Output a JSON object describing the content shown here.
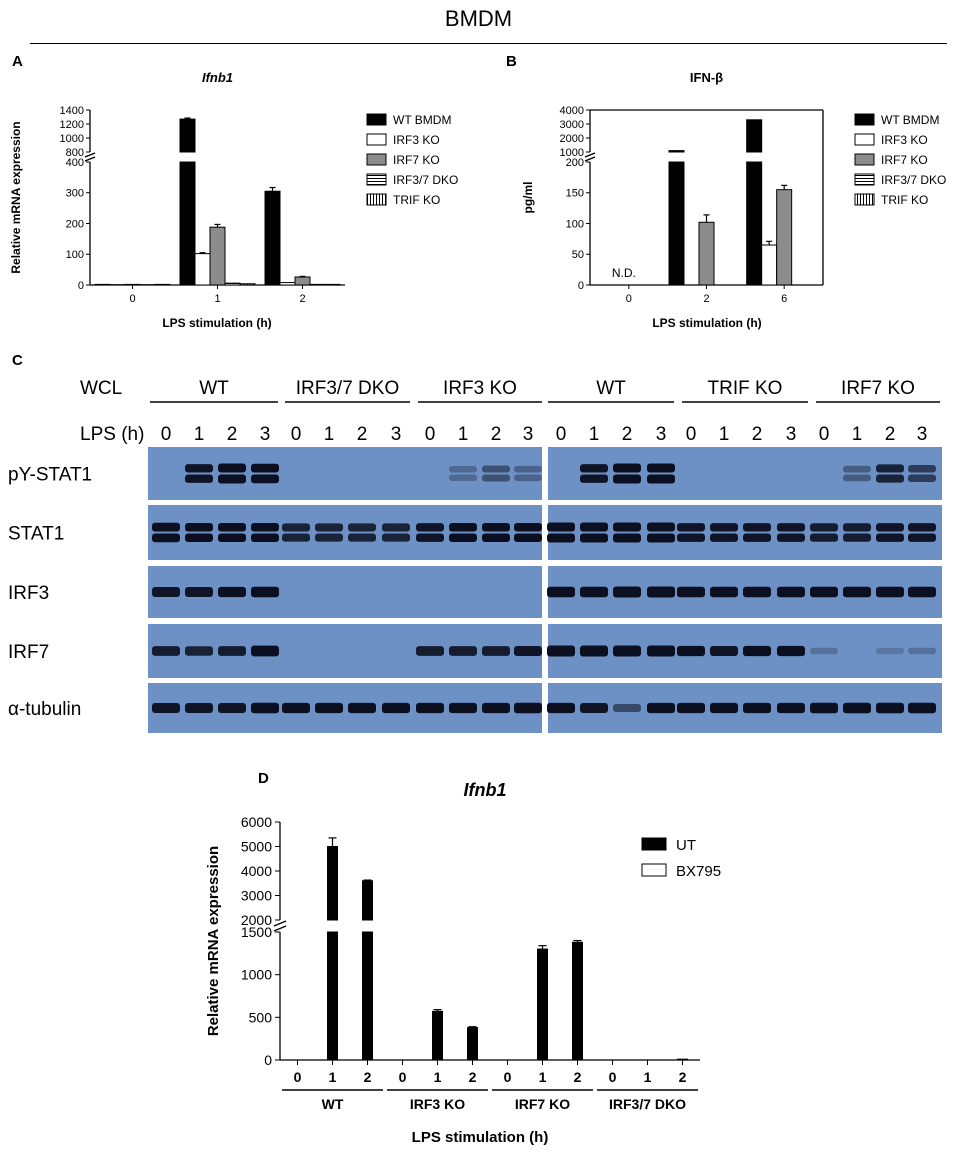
{
  "header": {
    "title": "BMDM"
  },
  "panels": {
    "a": "A",
    "b": "B",
    "c": "C",
    "d": "D"
  },
  "chart_data": [
    {
      "id": "A",
      "type": "bar",
      "title": "Ifnb1",
      "xlabel": "LPS stimulation (h)",
      "ylabel": "Relative mRNA expression",
      "categories": [
        "0",
        "1",
        "2"
      ],
      "axis_break": {
        "lower": [
          0,
          400
        ],
        "upper": [
          800,
          1400
        ]
      },
      "lower_ticks": [
        "0",
        "100",
        "200",
        "300",
        "400"
      ],
      "upper_ticks": [
        "800",
        "1000",
        "1200",
        "1400"
      ],
      "series": [
        {
          "name": "WT BMDM",
          "fill": "#000000",
          "pattern": "solid",
          "values": [
            2,
            1270,
            305
          ],
          "errors": [
            0,
            15,
            12
          ]
        },
        {
          "name": "IRF3 KO",
          "fill": "#ffffff",
          "pattern": "solid",
          "values": [
            1,
            102,
            8
          ],
          "errors": [
            0,
            3,
            0
          ]
        },
        {
          "name": "IRF7 KO",
          "fill": "#8c8c8c",
          "pattern": "solid",
          "values": [
            2,
            188,
            26
          ],
          "errors": [
            0,
            9,
            2
          ]
        },
        {
          "name": "IRF3/7 DKO",
          "fill": "#ffffff",
          "pattern": "hstripe",
          "values": [
            1,
            6,
            2
          ],
          "errors": [
            0,
            0,
            0
          ]
        },
        {
          "name": "TRIF KO",
          "fill": "#ffffff",
          "pattern": "vstripe",
          "values": [
            2,
            4,
            2
          ],
          "errors": [
            0,
            0,
            0
          ]
        }
      ]
    },
    {
      "id": "B",
      "type": "bar",
      "title": "IFN-β",
      "xlabel": "LPS stimulation (h)",
      "ylabel": "pg/ml",
      "categories": [
        "0",
        "2",
        "6"
      ],
      "annotation": "N.D.",
      "axis_break": {
        "lower": [
          0,
          200
        ],
        "upper": [
          1000,
          4000
        ]
      },
      "lower_ticks": [
        "0",
        "50",
        "100",
        "150",
        "200"
      ],
      "upper_ticks": [
        "1000",
        "2000",
        "3000",
        "4000"
      ],
      "series": [
        {
          "name": "WT BMDM",
          "fill": "#000000",
          "pattern": "solid",
          "values": [
            0,
            1100,
            3300
          ],
          "errors": [
            0,
            0,
            0
          ]
        },
        {
          "name": "IRF3 KO",
          "fill": "#ffffff",
          "pattern": "solid",
          "values": [
            0,
            0,
            65
          ],
          "errors": [
            0,
            0,
            6
          ]
        },
        {
          "name": "IRF7 KO",
          "fill": "#8c8c8c",
          "pattern": "solid",
          "values": [
            0,
            102,
            155
          ],
          "errors": [
            0,
            12,
            7
          ]
        },
        {
          "name": "IRF3/7 DKO",
          "fill": "#ffffff",
          "pattern": "hstripe",
          "values": [
            0,
            0,
            0
          ],
          "errors": [
            0,
            0,
            0
          ]
        },
        {
          "name": "TRIF KO",
          "fill": "#ffffff",
          "pattern": "vstripe",
          "values": [
            0,
            0,
            0
          ],
          "errors": [
            0,
            0,
            0
          ]
        }
      ]
    },
    {
      "id": "D",
      "type": "bar",
      "title": "Ifnb1",
      "xlabel": "LPS stimulation (h)",
      "ylabel": "Relative mRNA expression",
      "categories": [
        "0",
        "1",
        "2",
        "0",
        "1",
        "2",
        "0",
        "1",
        "2",
        "0",
        "1",
        "2"
      ],
      "groups": [
        "WT",
        "IRF3 KO",
        "IRF7 KO",
        "IRF3/7 DKO"
      ],
      "axis_break": {
        "lower": [
          0,
          1500
        ],
        "upper": [
          2000,
          6000
        ]
      },
      "lower_ticks": [
        "0",
        "500",
        "1000",
        "1500"
      ],
      "upper_ticks": [
        "2000",
        "3000",
        "4000",
        "5000",
        "6000"
      ],
      "series": [
        {
          "name": "UT",
          "fill": "#000000",
          "pattern": "solid",
          "values": [
            0,
            5000,
            3600,
            0,
            570,
            380,
            0,
            1300,
            1380,
            0,
            0,
            10
          ],
          "errors": [
            0,
            350,
            30,
            0,
            20,
            10,
            0,
            40,
            20,
            0,
            0,
            0
          ]
        },
        {
          "name": "BX795",
          "fill": "#ffffff",
          "pattern": "solid",
          "values": [
            0,
            0,
            0,
            0,
            0,
            0,
            0,
            0,
            0,
            0,
            0,
            0
          ],
          "errors": [
            0,
            0,
            0,
            0,
            0,
            0,
            0,
            0,
            0,
            0,
            0,
            0
          ]
        }
      ]
    }
  ],
  "blot": {
    "wcl_label": "WCL",
    "lps_label": "LPS (h)",
    "groups": [
      "WT",
      "IRF3/7 DKO",
      "IRF3 KO",
      "WT",
      "TRIF KO",
      "IRF7 KO"
    ],
    "timepoints": [
      "0",
      "1",
      "2",
      "3"
    ],
    "rows": [
      {
        "label": "pY-STAT1",
        "left": [
          0,
          0.8,
          1,
          0.9,
          0,
          0,
          0,
          0,
          0,
          0.15,
          0.35,
          0.2
        ],
        "right": [
          0,
          0.8,
          1,
          1,
          0,
          0,
          0,
          0,
          0,
          0.25,
          0.7,
          0.5
        ]
      },
      {
        "label": "STAT1",
        "left": [
          0.9,
          0.85,
          0.85,
          0.85,
          0.7,
          0.7,
          0.7,
          0.7,
          0.8,
          0.85,
          0.85,
          0.85
        ],
        "right": [
          1,
          1,
          1,
          1,
          0.8,
          0.8,
          0.8,
          0.8,
          0.75,
          0.75,
          0.8,
          0.8
        ]
      },
      {
        "label": "IRF3",
        "left": [
          0.8,
          0.8,
          0.85,
          0.9,
          0,
          0,
          0,
          0,
          0,
          0,
          0,
          0
        ],
        "right": [
          0.9,
          0.9,
          1,
          1,
          0.9,
          0.9,
          0.9,
          0.9,
          0.9,
          0.9,
          0.9,
          0.9
        ]
      },
      {
        "label": "IRF7",
        "left": [
          0.75,
          0.7,
          0.75,
          0.95,
          0,
          0,
          0,
          0,
          0.75,
          0.75,
          0.75,
          0.8
        ],
        "right": [
          1,
          1,
          1,
          1,
          0.85,
          0.8,
          0.85,
          0.85,
          0.1,
          0,
          0.05,
          0.1
        ]
      },
      {
        "label": "α-tubulin",
        "left": [
          0.8,
          0.8,
          0.8,
          0.9,
          0.85,
          0.85,
          0.85,
          0.85,
          0.85,
          0.85,
          0.85,
          0.9
        ],
        "right": [
          0.85,
          0.8,
          0.4,
          0.85,
          0.85,
          0.85,
          0.85,
          0.85,
          0.9,
          0.9,
          0.9,
          0.9
        ]
      }
    ],
    "colors": {
      "membrane": "#6d91c4",
      "band": "#0b0f1f"
    }
  }
}
